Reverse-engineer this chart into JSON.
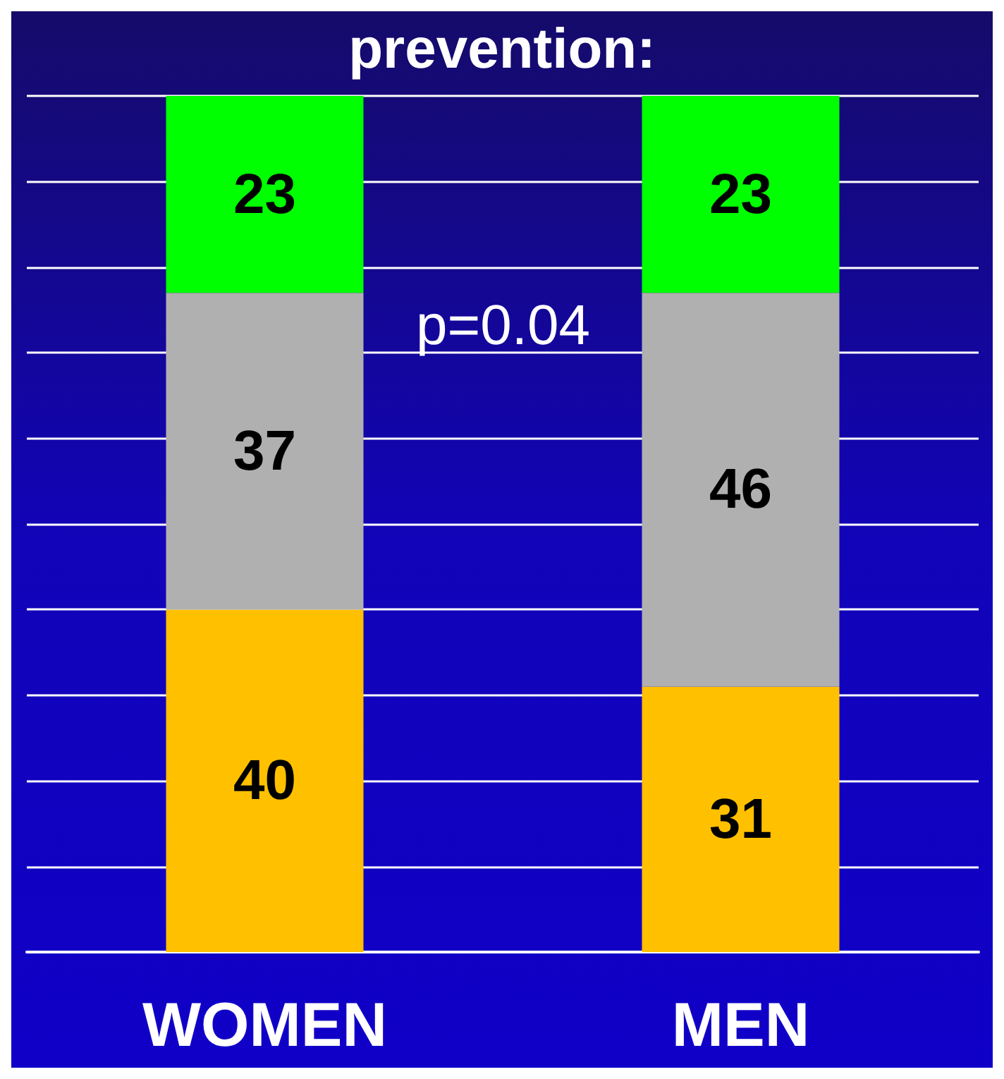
{
  "chart_data": {
    "type": "bar",
    "title": "prevention:",
    "categories": [
      "WOMEN",
      "MEN"
    ],
    "stacked": true,
    "data_labels": true,
    "grid": "y",
    "ylim": [
      0,
      100
    ],
    "yticks": [
      {
        "value": 0,
        "label": null
      },
      {
        "value": 10,
        "label": null
      },
      {
        "value": 20,
        "label": null
      },
      {
        "value": 30,
        "label": null
      },
      {
        "value": 40,
        "label": null
      },
      {
        "value": 50,
        "label": null
      },
      {
        "value": 60,
        "label": null
      },
      {
        "value": 70,
        "label": null
      },
      {
        "value": 80,
        "label": null
      },
      {
        "value": 90,
        "label": null
      },
      {
        "value": 100,
        "label": null
      }
    ],
    "series": [
      {
        "color": "#ffc000",
        "values": [
          40,
          31
        ]
      },
      {
        "color": "#b0b0b0",
        "values": [
          37,
          46
        ]
      },
      {
        "color": "#00ff00",
        "values": [
          23,
          23
        ]
      }
    ],
    "annotations": [
      "p=0.04"
    ]
  }
}
